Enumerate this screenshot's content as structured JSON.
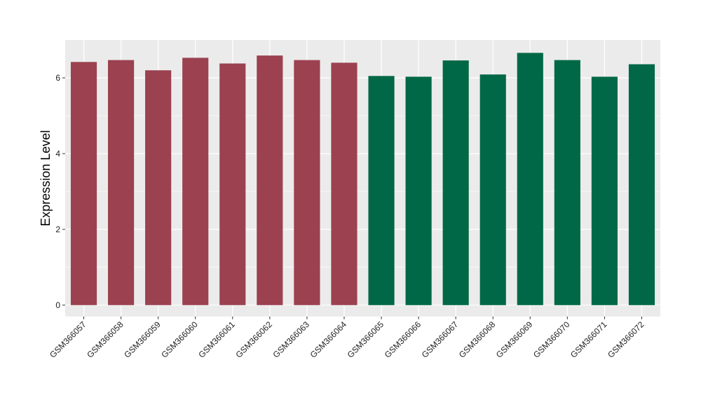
{
  "chart_data": {
    "type": "bar",
    "title": "",
    "xlabel": "",
    "ylabel": "Expression Level",
    "ylim": [
      -0.3,
      7.0
    ],
    "yticks": [
      0,
      2,
      4,
      6
    ],
    "grid": true,
    "legend": "none",
    "panel_background": "#ebebeb",
    "grid_color": "#ffffff",
    "categories": [
      "GSM366057",
      "GSM366058",
      "GSM366059",
      "GSM366060",
      "GSM366061",
      "GSM366062",
      "GSM366063",
      "GSM366064",
      "GSM366065",
      "GSM366066",
      "GSM366067",
      "GSM366068",
      "GSM366069",
      "GSM366070",
      "GSM366071",
      "GSM366072"
    ],
    "values": [
      6.42,
      6.47,
      6.2,
      6.53,
      6.38,
      6.59,
      6.47,
      6.4,
      6.05,
      6.03,
      6.46,
      6.09,
      6.66,
      6.47,
      6.03,
      6.36
    ],
    "bar_colors": [
      "#9b4150",
      "#9b4150",
      "#9b4150",
      "#9b4150",
      "#9b4150",
      "#9b4150",
      "#9b4150",
      "#9b4150",
      "#006846",
      "#006846",
      "#006846",
      "#006846",
      "#006846",
      "#006846",
      "#006846",
      "#006846"
    ]
  }
}
